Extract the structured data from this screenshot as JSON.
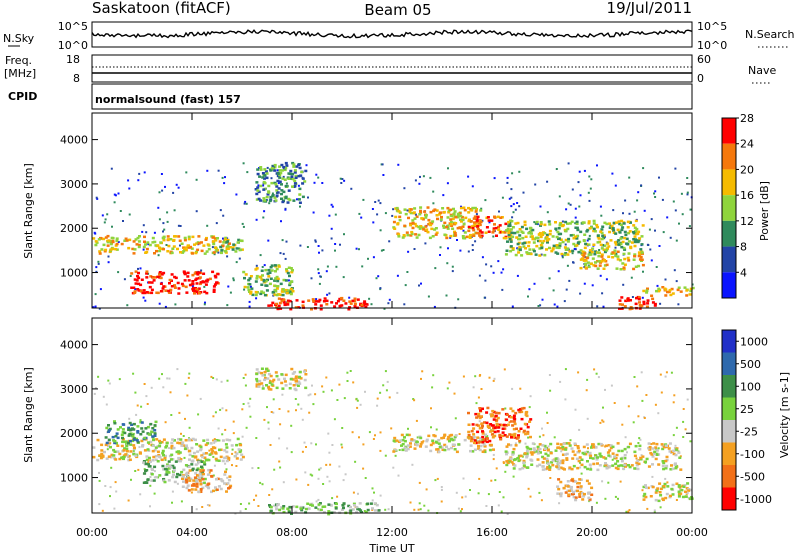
{
  "header": {
    "title": "Saskatoon (fitACF)",
    "beam": "Beam 05",
    "date": "19/Jul/2011"
  },
  "panels": {
    "noise": {
      "left_label": "N.Sky",
      "right_label": "N.Search",
      "left_ticks": [
        "10^5",
        "10^0"
      ],
      "right_ticks": [
        "10^5",
        "10^0"
      ]
    },
    "freq": {
      "left_label_1": "Freq.",
      "left_label_2": "[MHz]",
      "right_label": "Nave",
      "left_ticks": [
        "18",
        "8"
      ],
      "right_ticks": [
        "60",
        "0"
      ]
    },
    "cpid": {
      "label": "CPID",
      "text": "normalsound (fast) 157"
    }
  },
  "colors": {
    "power": [
      "#0a14ff",
      "#2244a6",
      "#2f8a5c",
      "#8fd43c",
      "#f5bb00",
      "#f5780c",
      "#ff0000"
    ],
    "velocity": [
      "#2130c8",
      "#2e69ad",
      "#3d8f48",
      "#78d23c",
      "#c8c8c8",
      "#f4a021",
      "#f27018",
      "#ff0000"
    ],
    "axis": "#000000"
  },
  "chart_data": [
    {
      "type": "heatmap",
      "name": "Power",
      "ylabel": "Slant Range [km]",
      "y_ticks": [
        "1000",
        "2000",
        "3000",
        "4000"
      ],
      "ylim": [
        200,
        4600
      ],
      "x_ticks": [
        "00:00",
        "04:00",
        "08:00",
        "12:00",
        "16:00",
        "20:00",
        "00:00"
      ],
      "xlim_hours": [
        0,
        24
      ],
      "colorbar": {
        "label": "Power [dB]",
        "tick_labels": [
          "4",
          "8",
          "12",
          "16",
          "20",
          "24",
          "28"
        ]
      },
      "regions": [
        {
          "t": [
            0.0,
            5.5
          ],
          "r": [
            1450,
            1850
          ],
          "level": 4
        },
        {
          "t": [
            1.5,
            5.0
          ],
          "r": [
            550,
            1050
          ],
          "level": 6
        },
        {
          "t": [
            5.0,
            6.0
          ],
          "r": [
            1500,
            1800
          ],
          "level": 3
        },
        {
          "t": [
            6.0,
            8.0
          ],
          "r": [
            500,
            1200
          ],
          "level": 3
        },
        {
          "t": [
            6.5,
            8.5
          ],
          "r": [
            2600,
            3500
          ],
          "level": 2
        },
        {
          "t": [
            7.0,
            11.0
          ],
          "r": [
            200,
            450
          ],
          "level": 6
        },
        {
          "t": [
            12.0,
            15.5
          ],
          "r": [
            1800,
            2500
          ],
          "level": 4
        },
        {
          "t": [
            15.0,
            16.5
          ],
          "r": [
            1800,
            2300
          ],
          "level": 5
        },
        {
          "t": [
            16.5,
            22.0
          ],
          "r": [
            1400,
            2200
          ],
          "level": 3
        },
        {
          "t": [
            19.5,
            22.0
          ],
          "r": [
            1100,
            1500
          ],
          "level": 4
        },
        {
          "t": [
            21.0,
            22.5
          ],
          "r": [
            200,
            500
          ],
          "level": 6
        },
        {
          "t": [
            22.0,
            24.0
          ],
          "r": [
            500,
            700
          ],
          "level": 4
        }
      ]
    },
    {
      "type": "heatmap",
      "name": "Velocity",
      "ylabel": "Slant Range [km]",
      "y_ticks": [
        "1000",
        "2000",
        "3000",
        "4000"
      ],
      "ylim": [
        200,
        4600
      ],
      "x_ticks": [
        "00:00",
        "04:00",
        "08:00",
        "12:00",
        "16:00",
        "20:00",
        "00:00"
      ],
      "xlabel": "Time UT",
      "xlim_hours": [
        0,
        24
      ],
      "colorbar": {
        "label": "Velocity [m s-1]",
        "tick_labels": [
          "1000",
          "500",
          "100",
          "25",
          "-25",
          "-100",
          "-500",
          "-1000"
        ]
      },
      "regions": [
        {
          "t": [
            0.0,
            6.0
          ],
          "r": [
            1400,
            1900
          ],
          "level": 4
        },
        {
          "t": [
            0.5,
            2.5
          ],
          "r": [
            1800,
            2300
          ],
          "level": 2
        },
        {
          "t": [
            2.0,
            4.5
          ],
          "r": [
            900,
            1400
          ],
          "level": 3
        },
        {
          "t": [
            3.5,
            5.5
          ],
          "r": [
            700,
            1200
          ],
          "level": 5
        },
        {
          "t": [
            6.5,
            8.5
          ],
          "r": [
            3000,
            3500
          ],
          "level": 4
        },
        {
          "t": [
            7.0,
            11.5
          ],
          "r": [
            200,
            450
          ],
          "level": 3
        },
        {
          "t": [
            12.0,
            16.0
          ],
          "r": [
            1600,
            2000
          ],
          "level": 4
        },
        {
          "t": [
            15.0,
            17.5
          ],
          "r": [
            1800,
            2600
          ],
          "level": 6
        },
        {
          "t": [
            16.5,
            23.5
          ],
          "r": [
            1200,
            1800
          ],
          "level": 4
        },
        {
          "t": [
            18.5,
            20.0
          ],
          "r": [
            500,
            1000
          ],
          "level": 5
        },
        {
          "t": [
            22.0,
            24.0
          ],
          "r": [
            500,
            900
          ],
          "level": 4
        }
      ]
    }
  ]
}
